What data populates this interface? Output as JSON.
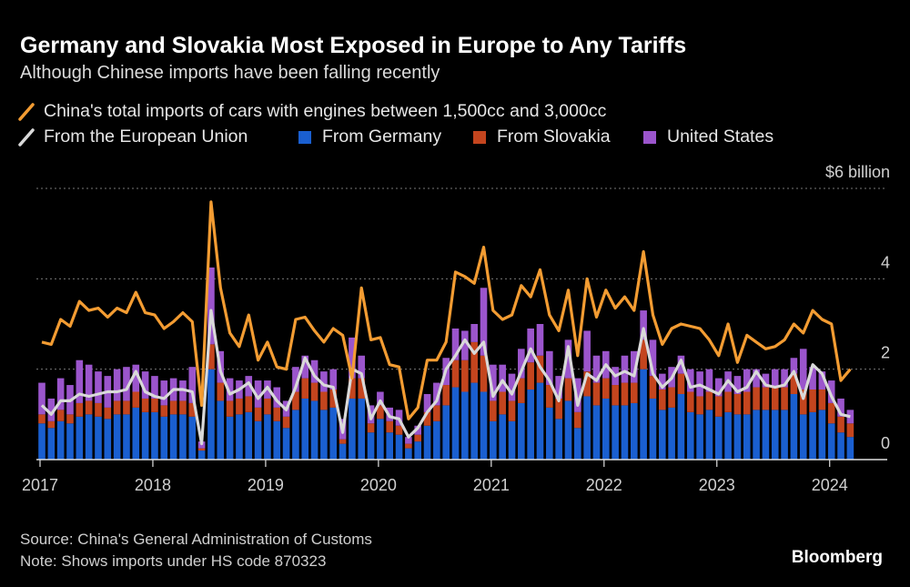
{
  "chart_data": {
    "type": "bar",
    "title": "Germany and Slovakia Most Exposed in Europe to Any Tariffs",
    "subtitle": "Although Chinese imports have been falling recently",
    "source": "Source: China's General Administration of Customs",
    "note": "Note: Shows imports under HS code 870323",
    "brand": "Bloomberg",
    "stacked": true,
    "x": [
      "2017-01",
      "2017-02",
      "2017-03",
      "2017-04",
      "2017-05",
      "2017-06",
      "2017-07",
      "2017-08",
      "2017-09",
      "2017-10",
      "2017-11",
      "2017-12",
      "2018-01",
      "2018-02",
      "2018-03",
      "2018-04",
      "2018-05",
      "2018-06",
      "2018-07",
      "2018-08",
      "2018-09",
      "2018-10",
      "2018-11",
      "2018-12",
      "2019-01",
      "2019-02",
      "2019-03",
      "2019-04",
      "2019-05",
      "2019-06",
      "2019-07",
      "2019-08",
      "2019-09",
      "2019-10",
      "2019-11",
      "2019-12",
      "2020-01",
      "2020-02",
      "2020-03",
      "2020-04",
      "2020-05",
      "2020-06",
      "2020-07",
      "2020-08",
      "2020-09",
      "2020-10",
      "2020-11",
      "2020-12",
      "2021-01",
      "2021-02",
      "2021-03",
      "2021-04",
      "2021-05",
      "2021-06",
      "2021-07",
      "2021-08",
      "2021-09",
      "2021-10",
      "2021-11",
      "2021-12",
      "2022-01",
      "2022-02",
      "2022-03",
      "2022-04",
      "2022-05",
      "2022-06",
      "2022-07",
      "2022-08",
      "2022-09",
      "2022-10",
      "2022-11",
      "2022-12",
      "2023-01",
      "2023-02",
      "2023-03",
      "2023-04",
      "2023-05",
      "2023-06",
      "2023-07",
      "2023-08",
      "2023-09",
      "2023-10",
      "2023-11",
      "2023-12",
      "2024-01",
      "2024-02",
      "2024-03"
    ],
    "xticks": [
      {
        "value": "2017-01",
        "label": "2017"
      },
      {
        "value": "2018-01",
        "label": "2018"
      },
      {
        "value": "2019-01",
        "label": "2019"
      },
      {
        "value": "2020-01",
        "label": "2020"
      },
      {
        "value": "2021-01",
        "label": "2021"
      },
      {
        "value": "2022-01",
        "label": "2022"
      },
      {
        "value": "2023-01",
        "label": "2023"
      },
      {
        "value": "2024-01",
        "label": "2024"
      }
    ],
    "ylim": [
      0,
      6
    ],
    "yticks": [
      0,
      2,
      4,
      {
        "value": 6,
        "label": "$6 billion"
      }
    ],
    "grid": true,
    "series": [
      {
        "name": "China's total imports of cars with engines between 1,500cc and 3,000cc",
        "type": "line",
        "color": "#f39c32",
        "values": [
          2.6,
          2.55,
          3.1,
          2.95,
          3.5,
          3.3,
          3.35,
          3.15,
          3.35,
          3.25,
          3.7,
          3.25,
          3.2,
          2.9,
          3.05,
          3.25,
          3.05,
          1.2,
          5.7,
          3.8,
          2.8,
          2.5,
          3.2,
          2.2,
          2.6,
          2.05,
          2.0,
          3.1,
          3.15,
          2.85,
          2.6,
          2.9,
          2.75,
          1.8,
          3.8,
          2.65,
          2.7,
          2.1,
          2.05,
          0.9,
          1.15,
          2.2,
          2.2,
          2.6,
          4.15,
          4.05,
          3.9,
          4.7,
          3.3,
          3.1,
          3.2,
          3.85,
          3.6,
          4.2,
          3.2,
          2.85,
          3.75,
          2.3,
          4.0,
          3.15,
          3.75,
          3.35,
          3.6,
          3.3,
          4.6,
          3.2,
          2.55,
          2.9,
          3.0,
          2.95,
          2.9,
          2.65,
          2.3,
          3.0,
          2.15,
          2.75,
          2.6,
          2.45,
          2.5,
          2.65,
          3.0,
          2.8,
          3.3,
          3.1,
          3.0,
          1.75,
          2.0
        ]
      },
      {
        "name": "From the European Union",
        "type": "line",
        "color": "#d9d9d9",
        "values": [
          1.2,
          1.0,
          1.3,
          1.3,
          1.45,
          1.4,
          1.45,
          1.5,
          1.5,
          1.55,
          1.95,
          1.5,
          1.4,
          1.35,
          1.55,
          1.55,
          1.5,
          0.35,
          3.3,
          1.95,
          1.45,
          1.55,
          1.7,
          1.35,
          1.6,
          1.3,
          1.1,
          1.6,
          2.25,
          1.85,
          1.65,
          1.6,
          0.6,
          2.0,
          1.9,
          0.9,
          1.3,
          0.95,
          0.9,
          0.5,
          0.7,
          1.05,
          1.3,
          2.0,
          2.3,
          2.65,
          2.35,
          2.6,
          1.4,
          1.75,
          1.45,
          1.95,
          2.45,
          2.05,
          1.75,
          1.3,
          2.5,
          1.2,
          1.9,
          1.75,
          2.1,
          1.85,
          1.95,
          1.85,
          2.9,
          1.9,
          1.6,
          1.8,
          2.2,
          1.6,
          1.65,
          1.55,
          1.45,
          1.75,
          1.5,
          1.6,
          1.95,
          1.65,
          1.6,
          1.65,
          1.95,
          1.35,
          2.1,
          1.9,
          1.4,
          1.0,
          0.95
        ]
      },
      {
        "name": "From Germany",
        "type": "bar",
        "color": "#1a5fd0",
        "values": [
          0.8,
          0.7,
          0.85,
          0.8,
          0.95,
          1.0,
          0.95,
          0.9,
          1.0,
          1.0,
          1.15,
          1.05,
          1.05,
          0.95,
          1.0,
          1.0,
          0.95,
          0.2,
          2.0,
          1.3,
          0.95,
          1.0,
          1.05,
          0.85,
          1.0,
          0.85,
          0.7,
          1.1,
          1.35,
          1.3,
          1.1,
          1.15,
          0.35,
          1.35,
          1.35,
          0.6,
          0.9,
          0.6,
          0.55,
          0.25,
          0.4,
          0.75,
          0.85,
          1.2,
          1.6,
          1.5,
          1.7,
          1.5,
          0.85,
          1.0,
          0.85,
          1.25,
          1.55,
          1.7,
          1.15,
          0.9,
          1.3,
          0.7,
          1.4,
          1.2,
          1.35,
          1.2,
          1.2,
          1.25,
          2.0,
          1.35,
          1.1,
          1.15,
          1.45,
          1.05,
          1.0,
          1.1,
          0.95,
          1.05,
          1.0,
          1.0,
          1.1,
          1.1,
          1.1,
          1.1,
          1.45,
          1.0,
          1.05,
          1.1,
          0.8,
          0.6,
          0.5
        ]
      },
      {
        "name": "From Slovakia",
        "type": "bar",
        "color": "#c4451e",
        "values": [
          0.2,
          0.15,
          0.25,
          0.2,
          0.3,
          0.3,
          0.3,
          0.25,
          0.3,
          0.3,
          0.35,
          0.3,
          0.3,
          0.25,
          0.3,
          0.3,
          0.3,
          0.05,
          0.55,
          0.4,
          0.35,
          0.35,
          0.35,
          0.3,
          0.35,
          0.3,
          0.25,
          0.4,
          0.45,
          0.4,
          0.4,
          0.4,
          0.1,
          0.45,
          0.45,
          0.2,
          0.3,
          0.25,
          0.2,
          0.1,
          0.15,
          0.3,
          0.35,
          0.45,
          0.6,
          0.7,
          0.9,
          0.8,
          0.45,
          0.5,
          0.45,
          0.55,
          0.6,
          0.6,
          0.5,
          0.45,
          0.5,
          0.35,
          0.55,
          0.5,
          0.45,
          0.45,
          0.5,
          0.45,
          0.65,
          0.5,
          0.45,
          0.45,
          0.45,
          0.45,
          0.4,
          0.4,
          0.45,
          0.45,
          0.45,
          0.5,
          0.5,
          0.5,
          0.5,
          0.5,
          0.45,
          0.55,
          0.5,
          0.45,
          0.45,
          0.35,
          0.3
        ]
      },
      {
        "name": "United States",
        "type": "bar",
        "color": "#9b55cc",
        "values": [
          0.7,
          0.5,
          0.7,
          0.65,
          0.95,
          0.8,
          0.7,
          0.7,
          0.7,
          0.75,
          0.6,
          0.6,
          0.5,
          0.55,
          0.5,
          0.45,
          0.8,
          0.15,
          1.7,
          0.7,
          0.5,
          0.4,
          0.45,
          0.6,
          0.4,
          0.45,
          0.35,
          0.55,
          0.5,
          0.5,
          0.45,
          0.45,
          0.45,
          0.9,
          0.5,
          0.4,
          0.3,
          0.3,
          0.35,
          0.15,
          0.2,
          0.4,
          0.5,
          0.6,
          0.7,
          0.65,
          0.4,
          1.5,
          0.8,
          0.6,
          0.6,
          0.65,
          0.75,
          0.7,
          0.75,
          0.5,
          0.85,
          0.75,
          0.9,
          0.6,
          0.6,
          0.4,
          0.6,
          0.7,
          0.65,
          0.8,
          0.35,
          0.45,
          0.4,
          0.5,
          0.55,
          0.5,
          0.4,
          0.45,
          0.4,
          0.5,
          0.4,
          0.3,
          0.4,
          0.4,
          0.35,
          0.9,
          0.5,
          0.4,
          0.5,
          0.4,
          0.3
        ]
      }
    ]
  }
}
